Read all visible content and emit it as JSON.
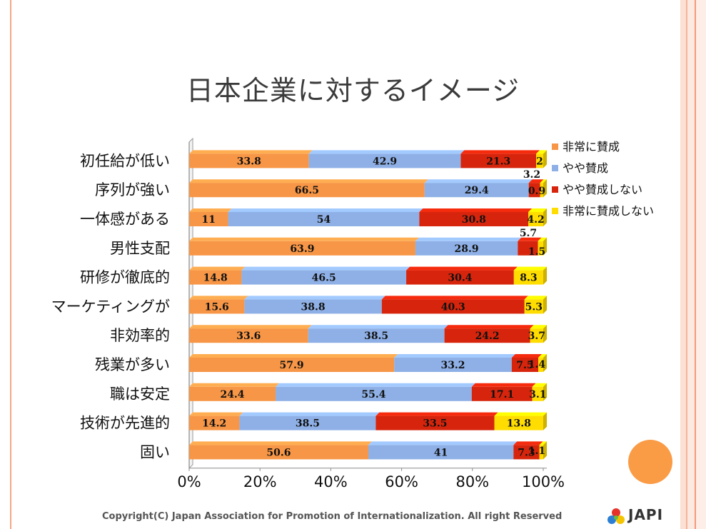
{
  "slide": {
    "title": "日本企業に対するイメージ",
    "copyright": "Copyright(C) Japan Association for Promotion of Internationalization. All right Reserved",
    "logo_text": "JAPI"
  },
  "chart_data": {
    "type": "bar",
    "stacked": "percent",
    "orientation": "horizontal",
    "title": "日本企業に対するイメージ",
    "categories": [
      "初任給が低い",
      "序列が強い",
      "一体感がある",
      "男性支配",
      "研修が徹底的",
      "マーケティングが",
      "非効率的",
      "残業が多い",
      "職は安定",
      "技術が先進的",
      "固い"
    ],
    "series": [
      {
        "name": "非常に賛成",
        "color": "#f79646",
        "values": [
          33.8,
          66.5,
          11,
          63.9,
          14.8,
          15.6,
          33.6,
          57.9,
          24.4,
          14.2,
          50.6
        ],
        "labels": [
          "33.8",
          "66.5",
          "11",
          "63.9",
          "14.8",
          "15.6",
          "33.6",
          "57.9",
          "24.4",
          "14.2",
          "50.6"
        ]
      },
      {
        "name": "やや賛成",
        "color": "#8eb0e6",
        "values": [
          42.9,
          29.4,
          54,
          28.9,
          46.5,
          38.8,
          38.5,
          33.2,
          55.4,
          38.5,
          41
        ],
        "labels": [
          "42.9",
          "29.4",
          "54",
          "28.9",
          "46.5",
          "38.8",
          "38.5",
          "33.2",
          "55.4",
          "38.5",
          "41"
        ]
      },
      {
        "name": "やや賛成しない",
        "color": "#d6250c",
        "values": [
          21.3,
          3.2,
          30.8,
          5.7,
          30.4,
          40.3,
          24.2,
          7.5,
          17.1,
          33.5,
          7.3
        ],
        "labels": [
          "21.3",
          "3.2",
          "30.8",
          "5.7",
          "30.4",
          "40.3",
          "24.2",
          "7.5",
          "17.1",
          "33.5",
          "7.3"
        ]
      },
      {
        "name": "非常に賛成しない",
        "color": "#ffdd00",
        "values": [
          2,
          0.9,
          4.2,
          1.5,
          8.3,
          5.3,
          3.7,
          1.4,
          3.1,
          13.8,
          1.1
        ],
        "labels": [
          "2",
          "0.9",
          "4.2",
          "1.5",
          "8.3",
          "5.3",
          "3.7",
          "1.4",
          "3.1",
          "13.8",
          "1.1"
        ]
      }
    ],
    "xlim": [
      0,
      100
    ],
    "x_ticks": [
      "0%",
      "20%",
      "40%",
      "60%",
      "80%",
      "100%"
    ],
    "legend_position": "right",
    "grid": false
  }
}
